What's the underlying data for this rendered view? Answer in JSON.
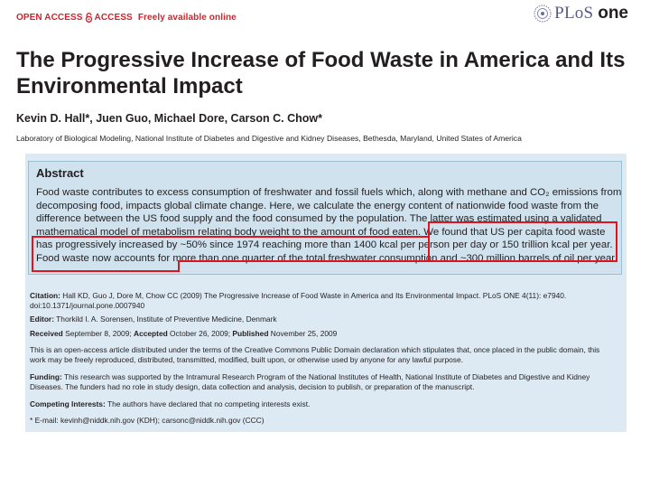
{
  "header": {
    "open_access": "OPEN ACCESS",
    "freely": "Freely available online",
    "journal_logo_text": "PLoS",
    "journal_logo_one": "one"
  },
  "article": {
    "title": "The Progressive Increase of Food Waste in America and Its Environmental Impact",
    "authors": "Kevin D. Hall*, Juen Guo, Michael Dore, Carson C. Chow*",
    "affiliation": "Laboratory of Biological Modeling, National Institute of Diabetes and Digestive and Kidney Diseases, Bethesda, Maryland, United States of America"
  },
  "abstract": {
    "heading": "Abstract",
    "text": "Food waste contributes to excess consumption of freshwater and fossil fuels which, along with methane and CO₂ emissions from decomposing food, impacts global climate change. Here, we calculate the energy content of nationwide food waste from the difference between the US food supply and the food consumed by the population. The latter was estimated using a validated mathematical model of metabolism relating body weight to the amount of food eaten. We found that US per capita food waste has progressively increased by ~50% since 1974 reaching more than 1400 kcal per person per day or 150 trillion kcal per year. Food waste now accounts for more than one quarter of the total freshwater consumption and ~300 million barrels of oil per year."
  },
  "meta": {
    "citation_label": "Citation:",
    "citation": "Hall KD, Guo J, Dore M, Chow CC (2009) The Progressive Increase of Food Waste in America and Its Environmental Impact. PLoS ONE 4(11): e7940. doi:10.1371/journal.pone.0007940",
    "editor_label": "Editor:",
    "editor": "Thorkild I. A. Sorensen, Institute of Preventive Medicine, Denmark",
    "received_label": "Received",
    "received": "September 8, 2009;",
    "accepted_label": "Accepted",
    "accepted": "October 26, 2009;",
    "published_label": "Published",
    "published": "November 25, 2009",
    "license": "This is an open-access article distributed under the terms of the Creative Commons Public Domain declaration which stipulates that, once placed in the public domain, this work may be freely reproduced, distributed, transmitted, modified, built upon, or otherwise used by anyone for any lawful purpose.",
    "funding_label": "Funding:",
    "funding": "This research was supported by the Intramural Research Program of the National Institutes of Health, National Institute of Diabetes and Digestive and Kidney Diseases. The funders had no role in study design, data collection and analysis, decision to publish, or preparation of the manuscript.",
    "competing_label": "Competing Interests:",
    "competing": "The authors have declared that no competing interests exist.",
    "email": "* E-mail: kevinh@niddk.nih.gov (KDH); carsonc@niddk.nih.gov (CCC)"
  }
}
